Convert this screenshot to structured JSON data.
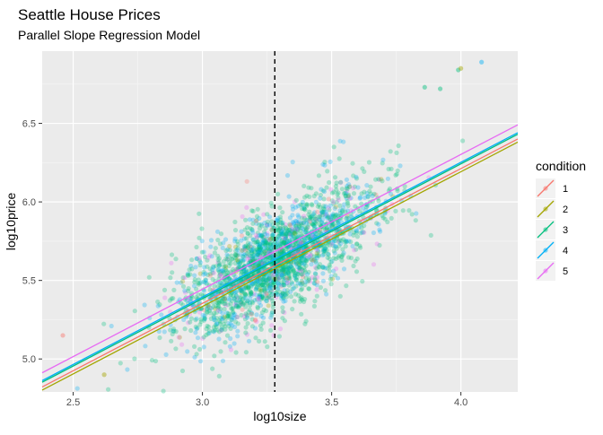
{
  "chart_data": {
    "type": "scatter",
    "title": "Seattle House Prices",
    "subtitle": "Parallel Slope Regression Model",
    "xlabel": "log10size",
    "ylabel": "log10price",
    "xlim": [
      2.38,
      4.22
    ],
    "ylim": [
      4.79,
      6.96
    ],
    "xticks": [
      2.5,
      3.0,
      3.5,
      4.0
    ],
    "xtick_labels": [
      "2.5",
      "3.0",
      "3.5",
      "4.0"
    ],
    "yticks": [
      5.0,
      5.5,
      6.0,
      6.5
    ],
    "ytick_labels": [
      "5.0",
      "5.5",
      "6.0",
      "6.5"
    ],
    "grid": true,
    "vline_x": 3.28,
    "vline_style": "dashed",
    "legend": {
      "title": "condition",
      "position": "right"
    },
    "point_cloud": {
      "center": [
        3.28,
        5.62
      ],
      "slope": 0.88,
      "x_sd": 0.19,
      "y_residual_sd": 0.16,
      "n": 2400,
      "opacity": 0.3,
      "mix": [
        0.02,
        0.01,
        0.62,
        0.27,
        0.08
      ]
    },
    "series": [
      {
        "name": "1",
        "color": "#F8766D",
        "intercept": 2.78,
        "slope": 0.858
      },
      {
        "name": "2",
        "color": "#A3A500",
        "intercept": 2.76,
        "slope": 0.858
      },
      {
        "name": "3",
        "color": "#00BF7D",
        "intercept": 2.81,
        "slope": 0.858
      },
      {
        "name": "4",
        "color": "#00B0F6",
        "intercept": 2.82,
        "slope": 0.858
      },
      {
        "name": "5",
        "color": "#E76BF3",
        "intercept": 2.87,
        "slope": 0.858
      }
    ],
    "highlight_points": [
      {
        "x": 4.08,
        "y": 6.89,
        "series": "4"
      },
      {
        "x": 3.99,
        "y": 6.84,
        "series": "3"
      },
      {
        "x": 4.0,
        "y": 6.85,
        "series": "2"
      },
      {
        "x": 2.46,
        "y": 5.15,
        "series": "1"
      },
      {
        "x": 2.62,
        "y": 4.9,
        "series": "2"
      },
      {
        "x": 3.92,
        "y": 6.72,
        "series": "3"
      },
      {
        "x": 3.86,
        "y": 6.73,
        "series": "3"
      }
    ]
  }
}
